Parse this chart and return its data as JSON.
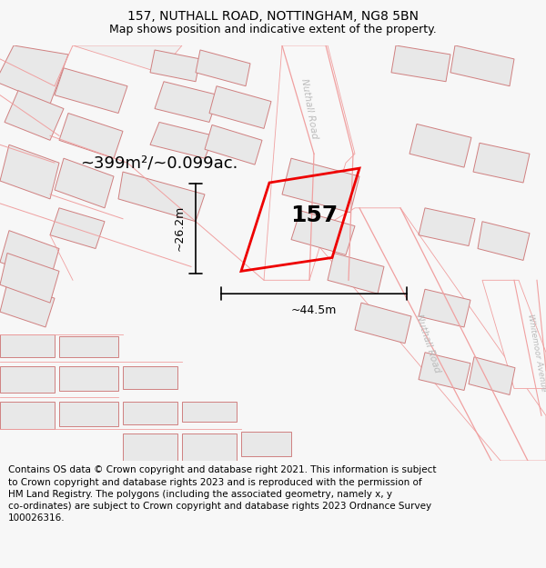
{
  "title_line1": "157, NUTHALL ROAD, NOTTINGHAM, NG8 5BN",
  "title_line2": "Map shows position and indicative extent of the property.",
  "footer_text": "Contains OS data © Crown copyright and database right 2021. This information is subject to Crown copyright and database rights 2023 and is reproduced with the permission of HM Land Registry. The polygons (including the associated geometry, namely x, y co-ordinates) are subject to Crown copyright and database rights 2023 Ordnance Survey 100026316.",
  "area_label": "~399m²/~0.099ac.",
  "width_label": "~44.5m",
  "height_label": "~26.2m",
  "property_number": "157",
  "bg_color": "#f7f7f7",
  "map_bg_color": "#ffffff",
  "road_line_color": "#f0a0a0",
  "building_fill": "#e8e8e8",
  "building_edge": "#d08080",
  "road_area_fill": "#ffffff",
  "red_plot_color": "#ee0000",
  "dim_line_color": "#000000",
  "road_label_color": "#bbbbbb",
  "title_fontsize": 10,
  "subtitle_fontsize": 9,
  "footer_fontsize": 7.5,
  "area_fontsize": 13,
  "number_fontsize": 18,
  "dim_fontsize": 9
}
